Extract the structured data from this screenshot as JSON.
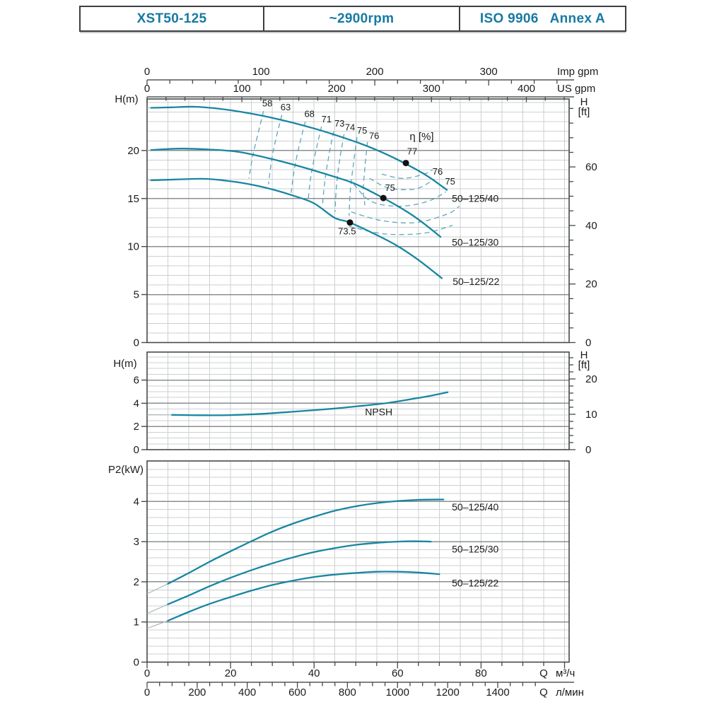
{
  "header": {
    "model": "XST50-125",
    "speed": "~2900rpm",
    "standard": "ISO 9906   Annex A"
  },
  "colors": {
    "curve": "#1886a2",
    "contour": "#5ea6bc",
    "ext_line": "#b3b7b8",
    "grid_light": "#ccd0d1",
    "grid_dark": "#8b8f90",
    "frame": "#46494a",
    "axis_line": "#7c8081",
    "text": "#1b1b1b",
    "header_text": "#1879a2",
    "dot": "#111111"
  },
  "top_axes": [
    {
      "name": "imp-gpm",
      "unit": "Imp gpm",
      "tick_labels": [
        0,
        100,
        200,
        300
      ],
      "minor_step": 20,
      "max_tick": 360,
      "units_per_m3h": 3.6662
    },
    {
      "name": "us-gpm",
      "unit": "US gpm",
      "tick_labels": [
        0,
        100,
        200,
        300,
        400
      ],
      "minor_step": 20,
      "max_tick": 440,
      "units_per_m3h": 4.4029
    }
  ],
  "x_axes": [
    {
      "name": "m3h",
      "prefix": "Q",
      "unit": "м³/ч",
      "tick_labels": [
        0,
        20,
        40,
        60,
        80
      ],
      "minor_step": 5,
      "max_tick": 100,
      "units_per_m3h": 1
    },
    {
      "name": "lmin",
      "prefix": "Q",
      "unit": "л/мин",
      "tick_labels": [
        0,
        200,
        400,
        600,
        800,
        1000,
        1200,
        1400
      ],
      "minor_step": 50,
      "max_tick": 1550,
      "units_per_m3h": 16.667
    }
  ],
  "chart_data": [
    {
      "name": "head-capacity",
      "type": "line",
      "ylabel": "H(m)",
      "ylabel_right": "H",
      "ylabel_right_unit": "[ft]",
      "xlim": [
        0,
        101
      ],
      "ylim": [
        0,
        25.4
      ],
      "yticks": [
        0,
        5,
        10,
        15,
        20
      ],
      "yticks_right_ft": [
        0,
        20,
        40,
        60
      ],
      "efficiency_label": "η [%]",
      "efficiency_label_at": [
        65.8,
        21.1
      ],
      "series": [
        {
          "name": "50–125/40",
          "points": [
            [
              1,
              24.45
            ],
            [
              6,
              24.5
            ],
            [
              12,
              24.55
            ],
            [
              20,
              24.2
            ],
            [
              30,
              23.4
            ],
            [
              40,
              22.3
            ],
            [
              50,
              20.9
            ],
            [
              55,
              20.05
            ],
            [
              60,
              19.05
            ],
            [
              65,
              17.9
            ],
            [
              68,
              17.1
            ],
            [
              71.8,
              15.9
            ]
          ],
          "ext_start": [
            0,
            24.43
          ],
          "label_at": [
            73,
            14.95
          ]
        },
        {
          "name": "50–125/30",
          "points": [
            [
              1,
              20.05
            ],
            [
              8,
              20.2
            ],
            [
              15,
              20.1
            ],
            [
              22,
              19.85
            ],
            [
              30,
              19.1
            ],
            [
              37,
              18.3
            ],
            [
              45,
              17.25
            ],
            [
              50,
              16.5
            ],
            [
              56.6,
              15.05
            ],
            [
              62,
              13.7
            ],
            [
              66,
              12.5
            ],
            [
              70.3,
              11
            ]
          ],
          "ext_start": [
            0,
            20.02
          ],
          "label_at": [
            73,
            10.4
          ]
        },
        {
          "name": "50–125/22",
          "points": [
            [
              1,
              16.9
            ],
            [
              8,
              17
            ],
            [
              14,
              17.05
            ],
            [
              20,
              16.8
            ],
            [
              25,
              16.45
            ],
            [
              30,
              15.95
            ],
            [
              35,
              15.3
            ],
            [
              40,
              14.5
            ],
            [
              44.9,
              13
            ],
            [
              48.6,
              12.5
            ],
            [
              55,
              11.2
            ],
            [
              60,
              10.05
            ],
            [
              65,
              8.6
            ],
            [
              70.6,
              6.7
            ]
          ],
          "ext_start": [
            0,
            16.88
          ],
          "label_at": [
            73.2,
            6.3
          ]
        }
      ],
      "bep_dots": [
        {
          "q": 62,
          "h": 18.7,
          "eff": "77",
          "label_at": [
            63.5,
            19.6
          ]
        },
        {
          "q": 56.6,
          "h": 15.05,
          "eff": "75",
          "label_at": [
            58.2,
            15.8
          ]
        },
        {
          "q": 48.6,
          "h": 12.5,
          "eff": "73.5",
          "label_at": [
            47.9,
            11.25
          ]
        }
      ],
      "efficiency_contours": [
        {
          "label": "58",
          "label_at": [
            28.8,
            24.6
          ],
          "points": [
            [
              27.9,
              24.1
            ],
            [
              26.6,
              21.8
            ],
            [
              25.3,
              19.4
            ],
            [
              24.4,
              17.1
            ]
          ]
        },
        {
          "label": "63",
          "label_at": [
            33.2,
            24.2
          ],
          "points": [
            [
              32.3,
              23.7
            ],
            [
              30.9,
              21.3
            ],
            [
              29.8,
              18.9
            ],
            [
              29.1,
              16.5
            ]
          ]
        },
        {
          "label": "68",
          "label_at": [
            38.9,
            23.5
          ],
          "points": [
            [
              37.9,
              23
            ],
            [
              36.5,
              20.6
            ],
            [
              35.3,
              18.1
            ],
            [
              34.5,
              15.6
            ]
          ]
        },
        {
          "label": "71",
          "label_at": [
            43,
            22.95
          ],
          "points": [
            [
              41.8,
              22.5
            ],
            [
              40.5,
              20.1
            ],
            [
              39.3,
              17.5
            ],
            [
              38.6,
              14.9
            ]
          ]
        },
        {
          "label": "73",
          "label_at": [
            46.1,
            22.5
          ],
          "points": [
            [
              44.7,
              22
            ],
            [
              43.6,
              19.6
            ],
            [
              42.6,
              16.9
            ],
            [
              42,
              14.2
            ]
          ]
        },
        {
          "label": "74",
          "label_at": [
            48.6,
            22.1
          ],
          "points": [
            [
              47.2,
              21.7
            ],
            [
              46.2,
              19.2
            ],
            [
              45.4,
              16.4
            ],
            [
              45,
              13.6
            ]
          ]
        },
        {
          "label": "75",
          "label_at": [
            51.5,
            21.75
          ],
          "points": [
            [
              50.3,
              21.4
            ],
            [
              49.5,
              18.8
            ],
            [
              48.7,
              15.9
            ],
            [
              48.4,
              13.2
            ]
          ]
        },
        {
          "label": "76",
          "label_at": [
            54.4,
            21.2
          ],
          "points": [
            [
              52.8,
              20.9
            ],
            [
              52.2,
              18.3
            ],
            [
              51.8,
              15.9
            ],
            [
              52.2,
              14.3
            ]
          ]
        },
        {
          "points": [
            [
              56.2,
              17.55
            ],
            [
              61.3,
              17.1
            ],
            [
              66.4,
              17.55
            ],
            [
              68.4,
              18
            ]
          ]
        },
        {
          "label": "76",
          "label_at": [
            69.6,
            17.5
          ],
          "points": [
            [
              53.3,
              17.1
            ],
            [
              57.9,
              16.1
            ],
            [
              64.3,
              16
            ],
            [
              68.8,
              17
            ]
          ]
        },
        {
          "label": "75",
          "label_at": [
            72.6,
            16.45
          ],
          "points": [
            [
              49.5,
              16.5
            ],
            [
              53.7,
              14.7
            ],
            [
              60.5,
              14.2
            ],
            [
              67.2,
              14.7
            ],
            [
              71.6,
              15.7
            ]
          ]
        },
        {
          "points": [
            [
              48.9,
              13.6
            ],
            [
              56.2,
              12.7
            ],
            [
              64.4,
              12.5
            ],
            [
              72,
              13.4
            ],
            [
              74.8,
              14.2
            ]
          ]
        },
        {
          "points": [
            [
              48.4,
              12.1
            ],
            [
              57.1,
              11.3
            ],
            [
              66.4,
              11.4
            ],
            [
              73.2,
              12.2
            ]
          ]
        }
      ]
    },
    {
      "name": "npsh",
      "type": "line",
      "ylabel": "H(m)",
      "ylabel_right": "H",
      "ylabel_right_unit": "[ft]",
      "xlim": [
        0,
        101
      ],
      "ylim": [
        0,
        8.4
      ],
      "yticks": [
        0,
        2,
        4,
        6
      ],
      "yticks_right_ft": [
        0,
        10,
        20
      ],
      "series": [
        {
          "name": "NPSH",
          "points": [
            [
              6,
              3
            ],
            [
              12,
              2.97
            ],
            [
              20,
              2.98
            ],
            [
              28,
              3.1
            ],
            [
              36,
              3.3
            ],
            [
              45,
              3.55
            ],
            [
              52,
              3.8
            ],
            [
              58,
              4.05
            ],
            [
              64,
              4.4
            ],
            [
              68,
              4.65
            ],
            [
              72,
              4.95
            ]
          ],
          "ext_start": [
            0,
            3.02
          ],
          "label_at": [
            55.5,
            3.2
          ]
        }
      ]
    },
    {
      "name": "power",
      "type": "line",
      "ylabel": "P2(kW)",
      "xlim": [
        0,
        101
      ],
      "ylim": [
        0,
        5
      ],
      "yticks": [
        0,
        1,
        2,
        3,
        4
      ],
      "series": [
        {
          "name": "50–125/40",
          "points": [
            [
              5,
              1.95
            ],
            [
              10,
              2.22
            ],
            [
              15,
              2.5
            ],
            [
              20,
              2.76
            ],
            [
              25,
              3.01
            ],
            [
              30,
              3.25
            ],
            [
              35,
              3.45
            ],
            [
              40,
              3.62
            ],
            [
              45,
              3.77
            ],
            [
              50,
              3.88
            ],
            [
              55,
              3.96
            ],
            [
              60,
              4.01
            ],
            [
              65,
              4.04
            ],
            [
              71,
              4.05
            ]
          ],
          "ext_start": [
            0,
            1.7
          ],
          "label_at": [
            73,
            3.85
          ]
        },
        {
          "name": "50–125/30",
          "points": [
            [
              5,
              1.44
            ],
            [
              10,
              1.66
            ],
            [
              15,
              1.89
            ],
            [
              20,
              2.1
            ],
            [
              25,
              2.29
            ],
            [
              30,
              2.46
            ],
            [
              35,
              2.61
            ],
            [
              40,
              2.74
            ],
            [
              45,
              2.84
            ],
            [
              50,
              2.92
            ],
            [
              55,
              2.97
            ],
            [
              60,
              3
            ],
            [
              64,
              3.01
            ],
            [
              68,
              3
            ]
          ],
          "ext_start": [
            0,
            1.21
          ],
          "label_at": [
            73,
            2.8
          ]
        },
        {
          "name": "50–125/22",
          "points": [
            [
              5,
              1.03
            ],
            [
              10,
              1.25
            ],
            [
              15,
              1.45
            ],
            [
              20,
              1.62
            ],
            [
              25,
              1.78
            ],
            [
              30,
              1.92
            ],
            [
              35,
              2.03
            ],
            [
              40,
              2.12
            ],
            [
              45,
              2.18
            ],
            [
              50,
              2.22
            ],
            [
              55,
              2.25
            ],
            [
              60,
              2.25
            ],
            [
              65,
              2.23
            ],
            [
              70,
              2.19
            ]
          ],
          "ext_start": [
            0,
            0.84
          ],
          "label_at": [
            73,
            1.95
          ]
        }
      ]
    }
  ]
}
